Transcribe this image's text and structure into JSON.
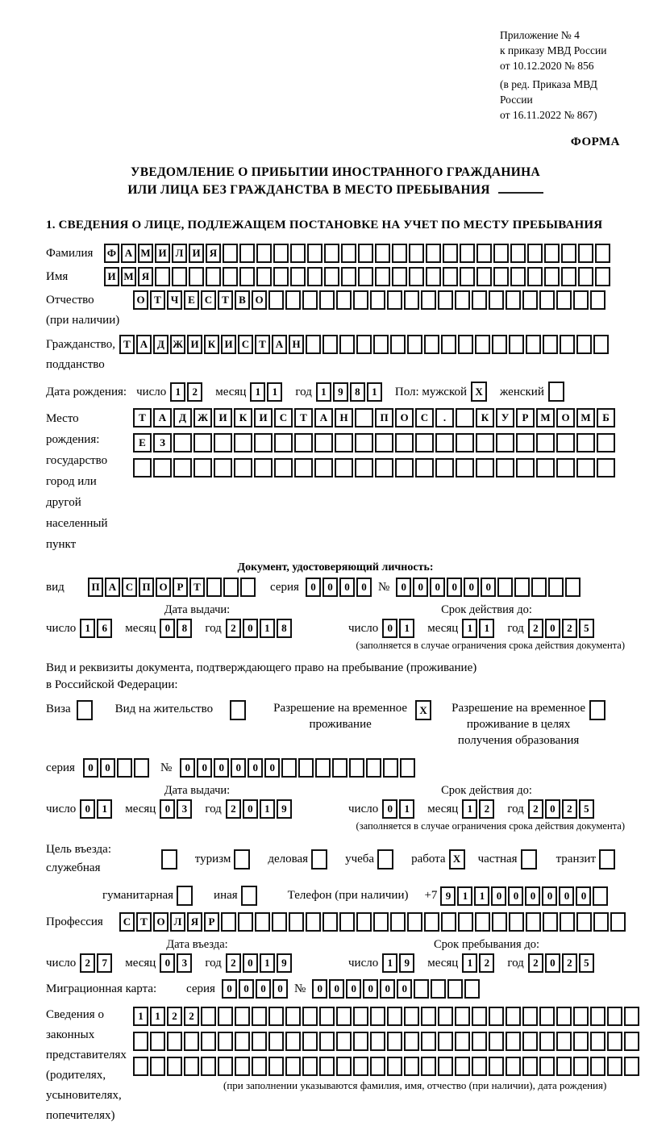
{
  "header": {
    "ref": [
      "Приложение № 4",
      "к приказу МВД России",
      "от 10.12.2020 № 856"
    ],
    "amend": [
      "(в ред. Приказа МВД России",
      "от 16.11.2022 № 867)"
    ],
    "forma": "ФОРМА"
  },
  "title": {
    "line1": "УВЕДОМЛЕНИЕ О ПРИБЫТИИ ИНОСТРАННОГО ГРАЖДАНИНА",
    "line2": "ИЛИ ЛИЦА БЕЗ ГРАЖДАНСТВА В МЕСТО ПРЕБЫВАНИЯ"
  },
  "section1_heading": "1. СВЕДЕНИЯ О ЛИЦЕ, ПОДЛЕЖАЩЕМ ПОСТАНОВКЕ НА УЧЕТ ПО МЕСТУ ПРЕБЫВАНИЯ",
  "labels": {
    "surname": "Фамилия",
    "name": "Имя",
    "patronymic1": "Отчество",
    "patronymic2": "(при наличии)",
    "citizenship1": "Гражданство,",
    "citizenship2": "подданство",
    "birthdate": "Дата рождения:",
    "day": "число",
    "month": "месяц",
    "year": "год",
    "sex_male": "Пол: мужской",
    "sex_female": "женский",
    "birthplace1": "Место рождения:",
    "birthplace2": "государство",
    "birthplace3": "город или другой",
    "birthplace4": "населенный пункт",
    "iddoc_heading": "Документ, удостоверяющий личность:",
    "vid": "вид",
    "seriya": "серия",
    "num": "№",
    "issue_date": "Дата выдачи:",
    "valid_until": "Срок действия до:",
    "valid_note": "(заполняется в случае ограничения срока действия документа)",
    "right_doc1": "Вид и реквизиты документа, подтверждающего право на пребывание (проживание)",
    "right_doc2": "в Российской Федерации:",
    "visa": "Виза",
    "residence_permit": "Вид на жительство",
    "temp_permit": "Разрешение на временное проживание",
    "temp_permit_edu": "Разрешение на временное проживание в целях получения образования",
    "purpose": "Цель въезда: служебная",
    "tourism": "туризм",
    "business": "деловая",
    "study": "учеба",
    "work": "работа",
    "private": "частная",
    "transit": "транзит",
    "humanitarian": "гуманитарная",
    "other": "иная",
    "phone": "Телефон (при наличии)",
    "plus7": "+7",
    "profession": "Профессия",
    "entry_date": "Дата въезда:",
    "stay_until": "Срок пребывания до:",
    "migration_card": "Миграционная карта:",
    "rep1": "Сведения о",
    "rep2": "законных",
    "rep3": "представителях",
    "rep4": "(родителях,",
    "rep5": "усыновителях,",
    "rep6": "попечителях)",
    "rep_note": "(при заполнении указываются фамилия, имя, отчество (при наличии), дата рождения)"
  },
  "grids": {
    "surname": {
      "len": 30,
      "value": "ФАМИЛИЯ"
    },
    "name": {
      "len": 30,
      "value": "ИМЯ"
    },
    "patronymic": {
      "len": 28,
      "value": "ОТЧЕСТВО"
    },
    "citizenship": {
      "len": 29,
      "value": "ТАДЖИКИСТАН"
    },
    "birth_day": {
      "len": 2,
      "value": "12"
    },
    "birth_month": {
      "len": 2,
      "value": "11"
    },
    "birth_year": {
      "len": 4,
      "value": "1981"
    },
    "sex_male_box": {
      "len": 1,
      "value": "X"
    },
    "sex_female_box": {
      "len": 1,
      "value": ""
    },
    "birthplace_row1": {
      "len": 24,
      "value": "ТАДЖИКИСТАН ПОС. КУРМОМБ"
    },
    "birthplace_row2": {
      "len": 24,
      "value": "ЕЗ"
    },
    "birthplace_row3": {
      "len": 24,
      "value": ""
    },
    "doc_type": {
      "len": 10,
      "value": "ПАСПОРТ"
    },
    "doc_series": {
      "len": 4,
      "value": "0000"
    },
    "doc_number": {
      "len": 11,
      "value": "000000"
    },
    "doc_issue_day": {
      "len": 2,
      "value": "16"
    },
    "doc_issue_month": {
      "len": 2,
      "value": "08"
    },
    "doc_issue_year": {
      "len": 4,
      "value": "2018"
    },
    "doc_valid_day": {
      "len": 2,
      "value": "01"
    },
    "doc_valid_month": {
      "len": 2,
      "value": "11"
    },
    "doc_valid_year": {
      "len": 4,
      "value": "2025"
    },
    "visa_box": {
      "len": 1,
      "value": ""
    },
    "residence_box": {
      "len": 1,
      "value": ""
    },
    "temp_permit_box": {
      "len": 1,
      "value": "X"
    },
    "temp_permit_edu_box": {
      "len": 1,
      "value": ""
    },
    "permit_series": {
      "len": 4,
      "value": "00"
    },
    "permit_number": {
      "len": 14,
      "value": "000000"
    },
    "permit_issue_day": {
      "len": 2,
      "value": "01"
    },
    "permit_issue_month": {
      "len": 2,
      "value": "03"
    },
    "permit_issue_year": {
      "len": 4,
      "value": "2019"
    },
    "permit_valid_day": {
      "len": 2,
      "value": "01"
    },
    "permit_valid_month": {
      "len": 2,
      "value": "12"
    },
    "permit_valid_year": {
      "len": 4,
      "value": "2025"
    },
    "purpose_official_box": {
      "len": 1,
      "value": ""
    },
    "purpose_tourism_box": {
      "len": 1,
      "value": ""
    },
    "purpose_business_box": {
      "len": 1,
      "value": ""
    },
    "purpose_study_box": {
      "len": 1,
      "value": ""
    },
    "purpose_work_box": {
      "len": 1,
      "value": "X"
    },
    "purpose_private_box": {
      "len": 1,
      "value": ""
    },
    "purpose_transit_box": {
      "len": 1,
      "value": ""
    },
    "purpose_humanitarian_box": {
      "len": 1,
      "value": ""
    },
    "purpose_other_box": {
      "len": 1,
      "value": ""
    },
    "phone": {
      "len": 10,
      "value": "911000000"
    },
    "profession": {
      "len": 30,
      "value": "СТОЛЯР"
    },
    "entry_day": {
      "len": 2,
      "value": "27"
    },
    "entry_month": {
      "len": 2,
      "value": "03"
    },
    "entry_year": {
      "len": 4,
      "value": "2019"
    },
    "stay_day": {
      "len": 2,
      "value": "19"
    },
    "stay_month": {
      "len": 2,
      "value": "12"
    },
    "stay_year": {
      "len": 4,
      "value": "2025"
    },
    "mig_series": {
      "len": 4,
      "value": "0000"
    },
    "mig_number": {
      "len": 10,
      "value": "000000"
    },
    "rep_row1": {
      "len": 30,
      "value": "1122"
    },
    "rep_row2": {
      "len": 30,
      "value": ""
    },
    "rep_row3": {
      "len": 30,
      "value": ""
    }
  }
}
